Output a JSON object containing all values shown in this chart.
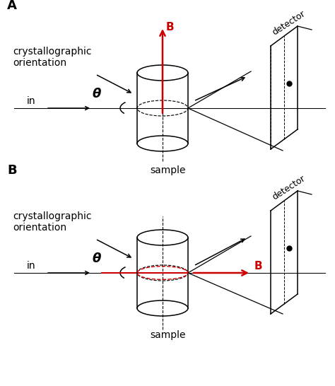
{
  "bg_color": "#ffffff",
  "line_color": "#000000",
  "red_color": "#cc0000",
  "panel_A_label": "A",
  "panel_B_label": "B",
  "label_crystallographic": "crystallographic\norientation",
  "label_in": "in",
  "label_sample": "sample",
  "label_detector": "detector",
  "label_B": "B",
  "label_theta": "θ",
  "fontsize_panel": 13,
  "fontsize_label": 10,
  "fontsize_theta": 12
}
